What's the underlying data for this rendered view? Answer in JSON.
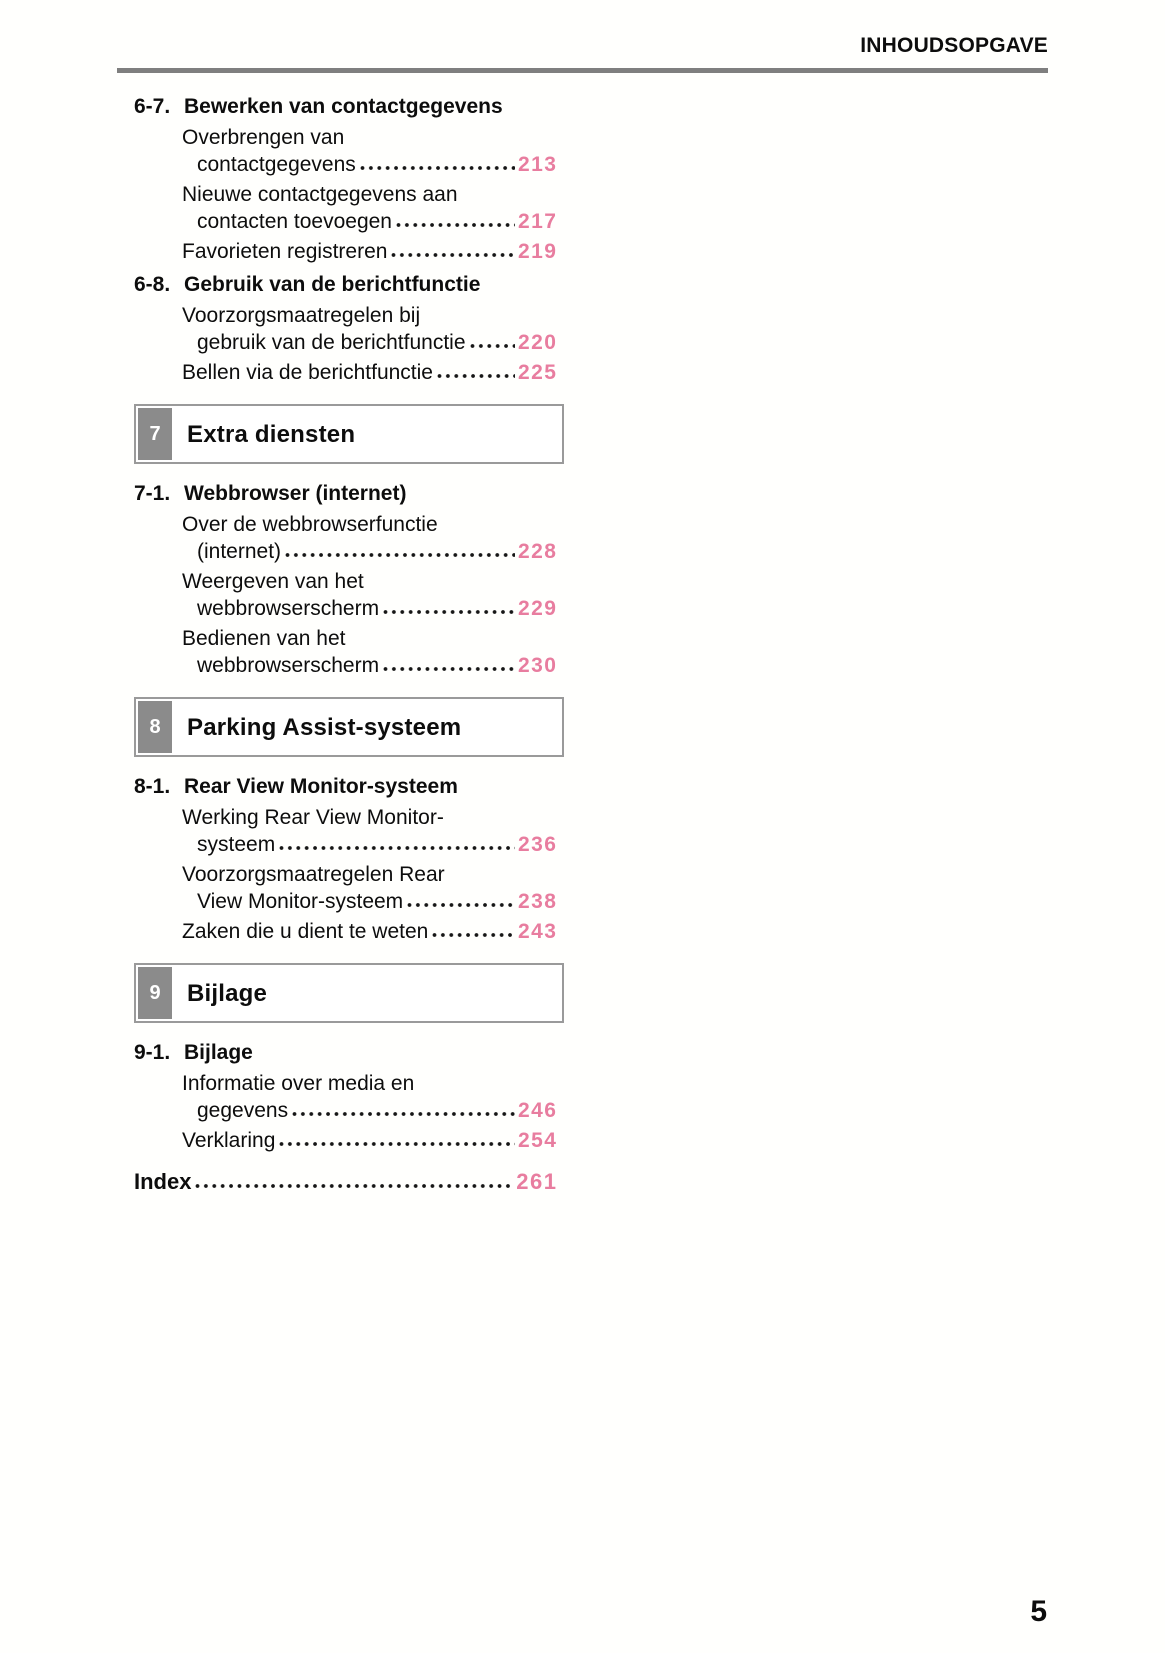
{
  "header": {
    "title": "INHOUDSOPGAVE"
  },
  "footer": {
    "page_number": "5"
  },
  "colors": {
    "page_number_pink": "#e87d9f",
    "chapter_tab_gray": "#8b8b8b",
    "chapter_border_gray": "#9a9a9a",
    "rule_gray": "#7f7f7f"
  },
  "toc": {
    "sections": [
      {
        "type": "subsection",
        "number": "6-7.",
        "title": "Bewerken van contactgegevens",
        "entries": [
          {
            "lines": [
              "Overbrengen van",
              "contactgegevens"
            ],
            "page": "213"
          },
          {
            "lines": [
              "Nieuwe contactgegevens aan",
              "contacten toevoegen"
            ],
            "page": "217"
          },
          {
            "lines": [
              "Favorieten registreren"
            ],
            "page": "219"
          }
        ]
      },
      {
        "type": "subsection",
        "number": "6-8.",
        "title": "Gebruik van de berichtfunctie",
        "entries": [
          {
            "lines": [
              "Voorzorgsmaatregelen bij",
              "gebruik van de berichtfunctie"
            ],
            "page": "220"
          },
          {
            "lines": [
              "Bellen via de berichtfunctie"
            ],
            "page": "225"
          }
        ]
      },
      {
        "type": "chapter",
        "number": "7",
        "title": "Extra diensten"
      },
      {
        "type": "subsection",
        "number": "7-1.",
        "title": "Webbrowser (internet)",
        "entries": [
          {
            "lines": [
              "Over de webbrowserfunctie",
              "(internet)"
            ],
            "page": "228"
          },
          {
            "lines": [
              "Weergeven van het",
              "webbrowserscherm"
            ],
            "page": "229"
          },
          {
            "lines": [
              "Bedienen van het",
              "webbrowserscherm"
            ],
            "page": "230"
          }
        ]
      },
      {
        "type": "chapter",
        "number": "8",
        "title": "Parking Assist-systeem"
      },
      {
        "type": "subsection",
        "number": "8-1.",
        "title": "Rear View Monitor-systeem",
        "entries": [
          {
            "lines": [
              "Werking Rear View Monitor-",
              "systeem"
            ],
            "page": "236"
          },
          {
            "lines": [
              "Voorzorgsmaatregelen Rear",
              "View Monitor-systeem"
            ],
            "page": "238"
          },
          {
            "lines": [
              "Zaken die u dient te weten"
            ],
            "page": "243"
          }
        ]
      },
      {
        "type": "chapter",
        "number": "9",
        "title": "Bijlage"
      },
      {
        "type": "subsection",
        "number": "9-1.",
        "title": "Bijlage",
        "entries": [
          {
            "lines": [
              "Informatie over media en",
              "gegevens"
            ],
            "page": "246"
          },
          {
            "lines": [
              "Verklaring"
            ],
            "page": "254"
          }
        ]
      },
      {
        "type": "index",
        "title": "Index",
        "page": "261"
      }
    ]
  }
}
